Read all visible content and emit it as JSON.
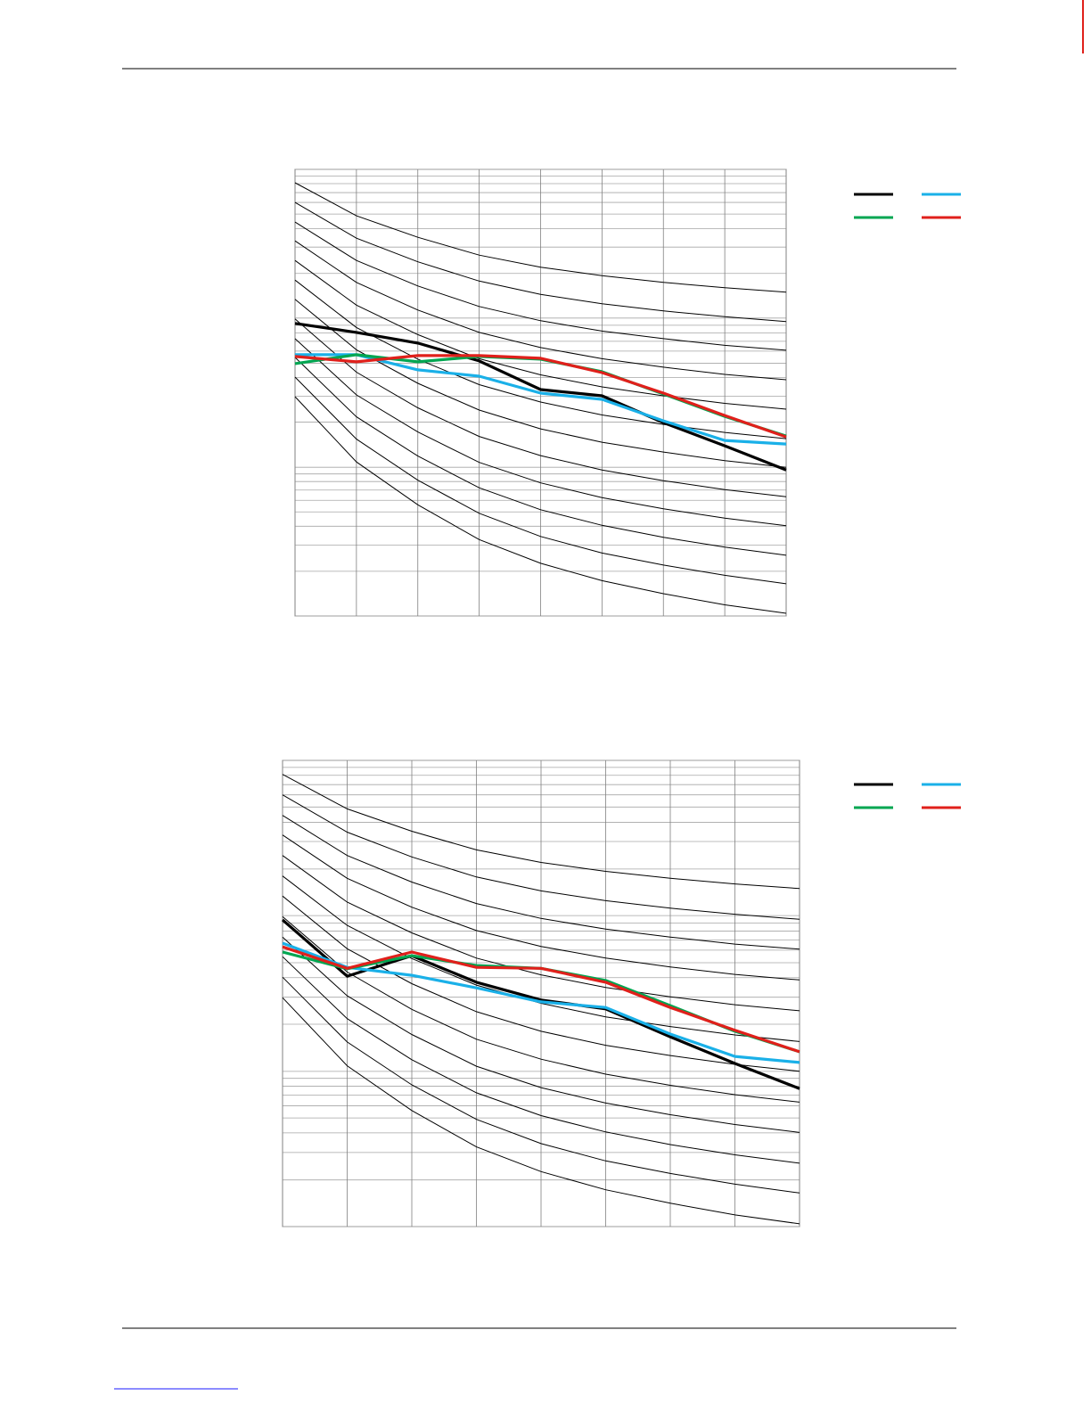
{
  "chart_data": [
    {
      "type": "line",
      "categories": [
        null,
        null,
        null,
        null,
        null,
        null,
        null,
        null,
        null
      ],
      "ylim": [
        0,
        100
      ],
      "ygrid": [
        0,
        10,
        15.9,
        20.1,
        23.3,
        25.9,
        28.2,
        30.1,
        31.8,
        33.3,
        43.4,
        49.2,
        53.4,
        56.6,
        59.3,
        61.5,
        63.4,
        65.1,
        66.7,
        76.7,
        82.6,
        86.7,
        90,
        92.6,
        94.8,
        96.8,
        98.5,
        100
      ],
      "grid": true,
      "legend": "right",
      "reference_curves": [
        [
          97.0,
          89.6,
          84.8,
          80.8,
          78.1,
          76.2,
          74.7,
          73.5,
          72.5
        ],
        [
          92.6,
          84.6,
          79.3,
          75.0,
          72.0,
          69.9,
          68.3,
          67.0,
          65.9
        ],
        [
          88.2,
          79.6,
          73.9,
          69.3,
          66.1,
          63.8,
          62.1,
          60.6,
          59.5
        ],
        [
          84.0,
          74.7,
          68.5,
          63.5,
          60.1,
          57.6,
          55.7,
          54.1,
          52.9
        ],
        [
          79.6,
          69.6,
          63.0,
          57.6,
          54.0,
          51.3,
          49.3,
          47.6,
          46.3
        ],
        [
          75.2,
          64.6,
          57.5,
          51.8,
          47.9,
          45.0,
          42.9,
          41.1,
          39.7
        ],
        [
          70.9,
          59.6,
          52.1,
          46.1,
          41.9,
          38.9,
          36.7,
          34.8,
          33.3
        ],
        [
          66.5,
          54.6,
          46.6,
          40.2,
          35.9,
          32.7,
          30.3,
          28.3,
          26.7
        ],
        [
          62.1,
          49.5,
          41.2,
          34.4,
          29.8,
          26.5,
          24.0,
          21.9,
          20.2
        ],
        [
          57.9,
          44.6,
          35.8,
          28.7,
          23.8,
          20.3,
          17.6,
          15.4,
          13.6
        ],
        [
          53.5,
          39.6,
          30.4,
          23.0,
          17.8,
          14.1,
          11.4,
          9.1,
          7.2
        ],
        [
          49.1,
          34.5,
          24.9,
          17.1,
          11.8,
          7.9,
          5.0,
          2.5,
          0.6
        ]
      ],
      "series": [
        {
          "color": "#000000",
          "values": [
            65.5,
            63.5,
            61.1,
            57.1,
            50.7,
            49.3,
            43.3,
            38.1,
            32.7
          ]
        },
        {
          "color": "#1ab0e8",
          "values": [
            58.5,
            58.5,
            55.1,
            53.7,
            49.9,
            48.5,
            43.7,
            39.3,
            38.5
          ]
        },
        {
          "color": "#00a651",
          "values": [
            56.5,
            58.5,
            56.9,
            58.1,
            57.5,
            54.7,
            49.7,
            44.7,
            40.3
          ]
        },
        {
          "color": "#e0201b",
          "values": [
            58.1,
            56.9,
            58.3,
            58.3,
            57.7,
            54.5,
            49.9,
            44.9,
            40.1
          ]
        }
      ]
    },
    {
      "type": "line",
      "categories": [
        null,
        null,
        null,
        null,
        null,
        null,
        null,
        null,
        null
      ],
      "ylim": [
        0,
        100
      ],
      "ygrid": [
        0,
        10,
        15.9,
        20.1,
        23.3,
        25.9,
        28.2,
        30.1,
        31.8,
        33.3,
        43.4,
        49.2,
        53.4,
        56.6,
        59.3,
        61.5,
        63.4,
        65.1,
        66.7,
        76.7,
        82.6,
        86.7,
        90,
        92.6,
        94.8,
        96.8,
        98.5,
        100
      ],
      "grid": true,
      "legend": "right",
      "reference_curves": [
        [
          97.0,
          89.6,
          84.8,
          80.8,
          78.1,
          76.2,
          74.7,
          73.5,
          72.5
        ],
        [
          92.6,
          84.6,
          79.3,
          75.0,
          72.0,
          69.9,
          68.3,
          67.0,
          65.9
        ],
        [
          88.2,
          79.6,
          73.9,
          69.3,
          66.1,
          63.8,
          62.1,
          60.6,
          59.5
        ],
        [
          84.0,
          74.7,
          68.5,
          63.5,
          60.1,
          57.6,
          55.7,
          54.1,
          52.9
        ],
        [
          79.6,
          69.6,
          63.0,
          57.6,
          54.0,
          51.3,
          49.3,
          47.6,
          46.3
        ],
        [
          75.2,
          64.6,
          57.5,
          51.8,
          47.9,
          45.0,
          42.9,
          41.1,
          39.7
        ],
        [
          70.9,
          59.6,
          52.1,
          46.1,
          41.9,
          38.9,
          36.7,
          34.8,
          33.3
        ],
        [
          66.5,
          54.6,
          46.6,
          40.2,
          35.9,
          32.7,
          30.3,
          28.3,
          26.7
        ],
        [
          62.1,
          49.5,
          41.2,
          34.4,
          29.8,
          26.5,
          24.0,
          21.9,
          20.2
        ],
        [
          57.9,
          44.6,
          35.8,
          28.7,
          23.8,
          20.3,
          17.6,
          15.4,
          13.6
        ],
        [
          53.5,
          39.6,
          30.4,
          23.0,
          17.8,
          14.1,
          11.4,
          9.1,
          7.2
        ],
        [
          49.1,
          34.5,
          24.9,
          17.1,
          11.8,
          7.9,
          5.0,
          2.5,
          0.6
        ]
      ],
      "series": [
        {
          "color": "#000000",
          "values": [
            65.8,
            53.7,
            58.1,
            52.4,
            48.6,
            46.7,
            40.7,
            35.0,
            29.6
          ]
        },
        {
          "color": "#1ab0e8",
          "values": [
            60.8,
            55.6,
            53.9,
            51.2,
            48.2,
            47.0,
            41.3,
            36.5,
            35.2
          ]
        },
        {
          "color": "#00a651",
          "values": [
            58.9,
            55.3,
            58.1,
            56.0,
            55.4,
            52.8,
            47.4,
            41.9,
            37.5
          ]
        },
        {
          "color": "#e0201b",
          "values": [
            60.0,
            55.4,
            58.9,
            55.6,
            55.4,
            52.4,
            47.0,
            42.1,
            37.5
          ]
        }
      ]
    }
  ]
}
